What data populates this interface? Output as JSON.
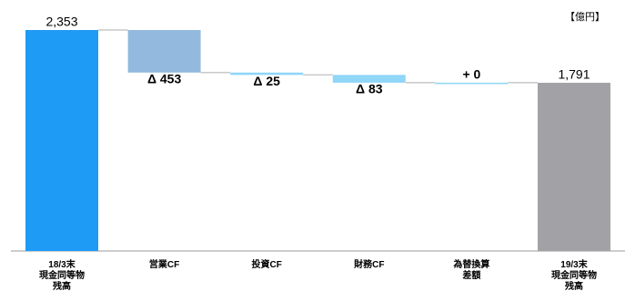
{
  "chart_data": {
    "type": "waterfall",
    "unit": "【億円】",
    "categories": [
      "18/3末\n現金同等物\n残高",
      "営業CF",
      "投資CF",
      "財務CF",
      "為替換算\n差額",
      "19/3末\n現金同等物\n残高"
    ],
    "series": [
      {
        "values": [
          2353,
          -453,
          -25,
          -83,
          0,
          1791
        ],
        "value_labels": [
          "2,353",
          "Δ 453",
          "Δ 25",
          "Δ 83",
          "+ 0",
          "1,791"
        ],
        "colors": [
          "#1e9bf5",
          "#93bade",
          "#8fd6f7",
          "#8fd6f7",
          "#8fd6f7",
          "#a2a2a6"
        ]
      }
    ]
  }
}
